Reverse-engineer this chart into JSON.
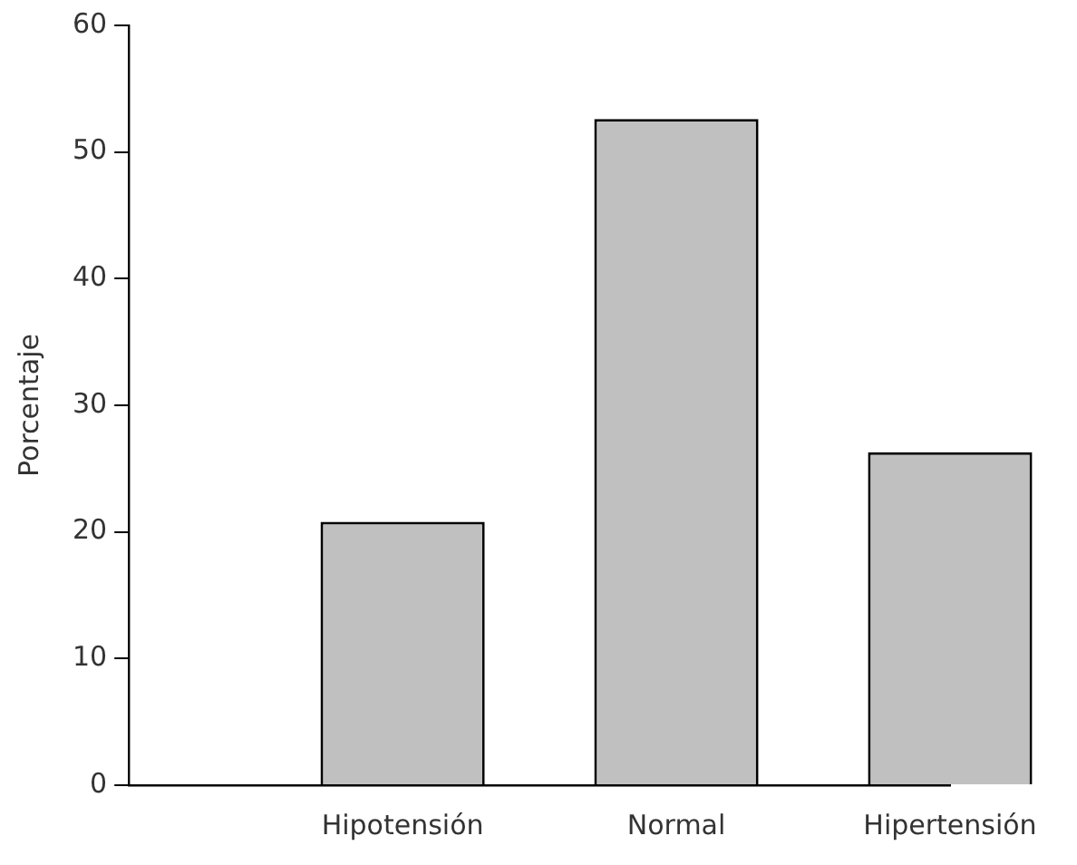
{
  "chart_data": {
    "type": "bar",
    "ylabel": "Porcentaje",
    "categories": [
      null,
      "Hipotensión",
      "Normal",
      "Hipertensión"
    ],
    "values": [
      null,
      20.8,
      52.6,
      26.3
    ],
    "color": "#c0c0c0",
    "ylim": [
      0,
      60
    ],
    "yticks": [
      0,
      10,
      20,
      30,
      40,
      50,
      60
    ],
    "grid": false,
    "legend": false
  }
}
